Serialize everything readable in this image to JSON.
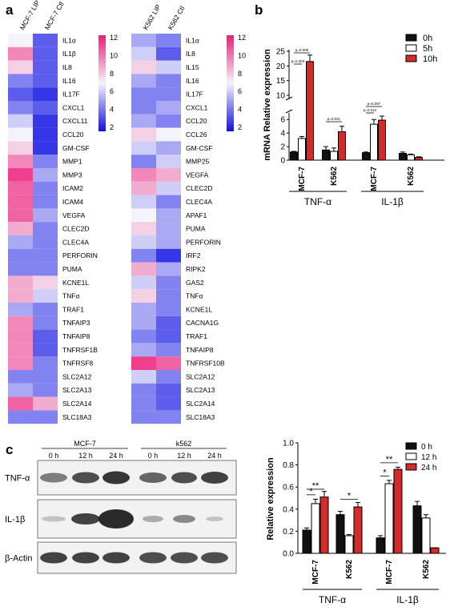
{
  "panels": {
    "a": "a",
    "b": "b",
    "c": "c"
  },
  "heatmap_scale_ticks": [
    "12",
    "10",
    "8",
    "6",
    "4",
    "2"
  ],
  "colors": {
    "low": "#1010e6",
    "mid": "#f4f4fa",
    "high": "#ee1b78",
    "bar_0h": "#111111",
    "bar_5h": "#ffffff",
    "bar_10h": "#d42a2a"
  },
  "chart_data": [
    {
      "type": "heatmap",
      "columns": [
        "MCF-7 LIP",
        "MCF-7 Ctl"
      ],
      "scale": [
        1,
        13
      ],
      "rows": [
        "IL1α",
        "IL1β",
        "IL8",
        "IL16",
        "IL17F",
        "CXCL1",
        "CXCL11",
        "CCL20",
        "GM-CSF",
        "MMP1",
        "MMP3",
        "ICAM2",
        "ICAM4",
        "VEGFA",
        "CLEC2D",
        "CLEC4A",
        "PERFORIN",
        "PUMA",
        "KCNE1L",
        "TNFα",
        "TRAF1",
        "TNFAIP3",
        "TNFAIP8",
        "TNFRSF1B",
        "TNFRSF8",
        "SLC2A12",
        "SLC2A13",
        "SLC2A14",
        "SLC18A3"
      ],
      "values": [
        [
          7,
          3
        ],
        [
          10,
          3
        ],
        [
          8,
          3
        ],
        [
          4,
          3
        ],
        [
          3,
          2
        ],
        [
          4,
          3
        ],
        [
          6,
          2
        ],
        [
          7,
          2
        ],
        [
          8,
          2
        ],
        [
          10,
          4
        ],
        [
          12,
          5
        ],
        [
          11,
          4
        ],
        [
          11,
          4
        ],
        [
          11,
          5
        ],
        [
          9,
          4
        ],
        [
          5,
          4
        ],
        [
          4,
          4
        ],
        [
          4,
          4
        ],
        [
          9,
          8
        ],
        [
          9,
          6
        ],
        [
          5,
          4
        ],
        [
          10,
          4
        ],
        [
          10,
          3
        ],
        [
          10,
          3
        ],
        [
          10,
          4
        ],
        [
          4,
          4
        ],
        [
          5,
          4
        ],
        [
          11,
          9
        ],
        [
          4,
          4
        ]
      ]
    },
    {
      "type": "heatmap",
      "columns": [
        "K562 LIP",
        "K562 Ctl"
      ],
      "scale": [
        1,
        13
      ],
      "rows": [
        "IL1α",
        "IL8",
        "IL15",
        "IL16",
        "IL17F",
        "CXCL1",
        "CCL20",
        "CCL26",
        "GM-CSF",
        "MMP25",
        "VEGFA",
        "CLEC2D",
        "CLEC4A",
        "APAF1",
        "PUMA",
        "PERFORIN",
        "IRF2",
        "RIPK2",
        "GAS2",
        "TNFα",
        "KCNE1L",
        "CACNA1G",
        "TRAF1",
        "TNFAIP8",
        "TNFRSF10B",
        "SLC2A12",
        "SLC2A13",
        "SLC2A14",
        "SLC18A3"
      ],
      "values": [
        [
          5,
          4
        ],
        [
          6,
          3
        ],
        [
          8,
          6
        ],
        [
          5,
          4
        ],
        [
          4,
          4
        ],
        [
          4,
          5
        ],
        [
          5,
          4
        ],
        [
          8,
          7
        ],
        [
          6,
          5
        ],
        [
          4,
          6
        ],
        [
          10,
          9
        ],
        [
          9,
          6
        ],
        [
          6,
          4
        ],
        [
          7,
          5
        ],
        [
          8,
          5
        ],
        [
          6,
          5
        ],
        [
          4,
          2
        ],
        [
          9,
          5
        ],
        [
          6,
          4
        ],
        [
          8,
          4
        ],
        [
          5,
          4
        ],
        [
          5,
          3
        ],
        [
          4,
          3
        ],
        [
          5,
          4
        ],
        [
          12,
          11
        ],
        [
          6,
          4
        ],
        [
          4,
          3
        ],
        [
          4,
          3
        ],
        [
          4,
          4
        ]
      ]
    },
    {
      "type": "bar",
      "ylabel": "mRNA Relative expression",
      "y_ticks_upper": [
        "25",
        "20",
        "15",
        "10"
      ],
      "y_ticks_lower": [
        "6",
        "4",
        "2",
        "0"
      ],
      "categories": [
        "MCF-7",
        "K562",
        "MCF-7",
        "K562"
      ],
      "groups": [
        {
          "label": "TNF-α"
        },
        {
          "label": "IL-1β"
        }
      ],
      "legend": "top-right",
      "series": [
        {
          "name": "0h",
          "values": [
            1.2,
            1.5,
            1.1,
            1.0
          ],
          "errors": [
            0.1,
            0.5,
            0.1,
            0.2
          ]
        },
        {
          "name": "5h",
          "values": [
            3.2,
            1.3,
            5.3,
            0.8
          ],
          "errors": [
            0.3,
            0.5,
            0.7,
            0.1
          ]
        },
        {
          "name": "10h",
          "values": [
            21.5,
            4.2,
            5.9,
            0.4
          ],
          "errors": [
            2.2,
            0.8,
            0.7,
            0.1
          ]
        }
      ],
      "annotations": [
        "p=0.009",
        "p=0.003",
        "p=0.021",
        "p=0.007",
        "p=0.012"
      ]
    },
    {
      "type": "bar",
      "ylabel": "Relative expression",
      "ylim": [
        0,
        1.0
      ],
      "y_ticks": [
        "1.0",
        "0.8",
        "0.6",
        "0.4",
        "0.2",
        "0.0"
      ],
      "categories": [
        "MCF-7",
        "K562",
        "MCF-7",
        "K562"
      ],
      "groups": [
        {
          "label": "TNF-α"
        },
        {
          "label": "IL-1β"
        }
      ],
      "legend": "top-right",
      "series": [
        {
          "name": "0 h",
          "values": [
            0.21,
            0.35,
            0.14,
            0.43
          ],
          "errors": [
            0.02,
            0.03,
            0.02,
            0.04
          ]
        },
        {
          "name": "12 h",
          "values": [
            0.45,
            0.16,
            0.63,
            0.32
          ],
          "errors": [
            0.04,
            0.01,
            0.03,
            0.03
          ]
        },
        {
          "name": "24 h",
          "values": [
            0.51,
            0.42,
            0.76,
            0.05
          ],
          "errors": [
            0.05,
            0.04,
            0.02,
            0.0
          ]
        }
      ],
      "annotations": [
        "*",
        "**",
        "*",
        "*",
        "**"
      ]
    }
  ],
  "blot": {
    "group_labels": [
      "MCF-7",
      "k562"
    ],
    "time_labels": [
      "0 h",
      "12 h",
      "24 h",
      "0 h",
      "12 h",
      "24 h"
    ],
    "rows": [
      "TNF-α",
      "IL-1β",
      "β-Actin"
    ]
  }
}
